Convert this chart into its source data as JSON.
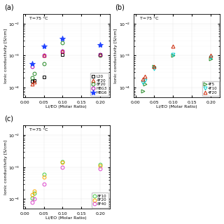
{
  "temp_label": "T=75 °C",
  "xlabel": "Li/EO (Molar Ratio)",
  "ylabel": "Ionic conductivity [S/cm]",
  "panel_a": {
    "L20": {
      "x": [
        0.02,
        0.025,
        0.05,
        0.1,
        0.2
      ],
      "y": [
        0.00016,
        0.00017,
        0.00021,
        0.0011,
        0.0011
      ],
      "color": "black",
      "marker": "s",
      "filled": false,
      "ms": 3.5
    },
    "4F20": {
      "x": [
        0.02,
        0.025,
        0.05,
        0.1,
        0.2
      ],
      "y": [
        0.00013,
        0.00015,
        0.001,
        0.0014,
        0.0011
      ],
      "color": "#cc2200",
      "marker": "^",
      "filled": false,
      "ms": 3.5
    },
    "8F20": {
      "x": [
        0.02,
        0.025,
        0.05,
        0.1,
        0.2
      ],
      "y": [
        0.0002,
        0.00028,
        0.00055,
        0.0025,
        0.001
      ],
      "color": "#228822",
      "marker": "o",
      "filled": false,
      "ms": 3.5
    },
    "HBG3": {
      "x": [
        0.02,
        0.05,
        0.1,
        0.2
      ],
      "y": [
        0.00045,
        0.001,
        0.0014,
        0.0011
      ],
      "color": "#aa00aa",
      "marker": "o",
      "filled": false,
      "ms": 3.5
    },
    "HBG6": {
      "x": [
        0.02,
        0.05,
        0.1,
        0.2
      ],
      "y": [
        0.00055,
        0.002,
        0.0035,
        0.0022
      ],
      "color": "#2244ff",
      "marker": "*",
      "filled": true,
      "ms": 6
    }
  },
  "panel_b": {
    "4F5": {
      "x": [
        0.02,
        0.025,
        0.05,
        0.1,
        0.2
      ],
      "y": [
        8e-05,
        0.00013,
        0.00045,
        0.001,
        0.0008
      ],
      "color": "#228822",
      "marker": ">",
      "filled": false,
      "ms": 3.5
    },
    "4F10": {
      "x": [
        0.02,
        0.025,
        0.05,
        0.1,
        0.2
      ],
      "y": [
        0.00014,
        0.00017,
        0.0004,
        0.0011,
        0.0009
      ],
      "color": "#00cccc",
      "marker": "v",
      "filled": false,
      "ms": 3.5
    },
    "4F20": {
      "x": [
        0.02,
        0.025,
        0.05,
        0.1,
        0.2
      ],
      "y": [
        0.00018,
        0.00022,
        0.00045,
        0.002,
        0.001
      ],
      "color": "#cc2200",
      "marker": "^",
      "filled": false,
      "ms": 3.5
    }
  },
  "panel_c": {
    "8F10": {
      "x": [
        0.02,
        0.025,
        0.05,
        0.1,
        0.2
      ],
      "y": [
        0.00011,
        0.00015,
        0.0006,
        0.0015,
        0.0012
      ],
      "color": "#44cc44",
      "marker": "o",
      "filled": false,
      "ms": 3.5
    },
    "8F20": {
      "x": [
        0.02,
        0.025,
        0.05,
        0.1,
        0.2
      ],
      "y": [
        0.00014,
        0.00018,
        0.0005,
        0.0014,
        0.0011
      ],
      "color": "#ffaa00",
      "marker": "o",
      "filled": false,
      "ms": 3.5
    },
    "8F40": {
      "x": [
        0.02,
        0.025,
        0.05,
        0.1,
        0.2
      ],
      "y": [
        8e-05,
        0.0001,
        0.0003,
        0.001,
        0.0009
      ],
      "color": "#dd44cc",
      "marker": "o",
      "filled": false,
      "ms": 3.5
    }
  },
  "ylim": [
    5e-05,
    0.02
  ],
  "xlim": [
    -0.005,
    0.225
  ],
  "xticks": [
    0.0,
    0.05,
    0.1,
    0.15,
    0.2
  ],
  "bg_color": "#ffffff"
}
